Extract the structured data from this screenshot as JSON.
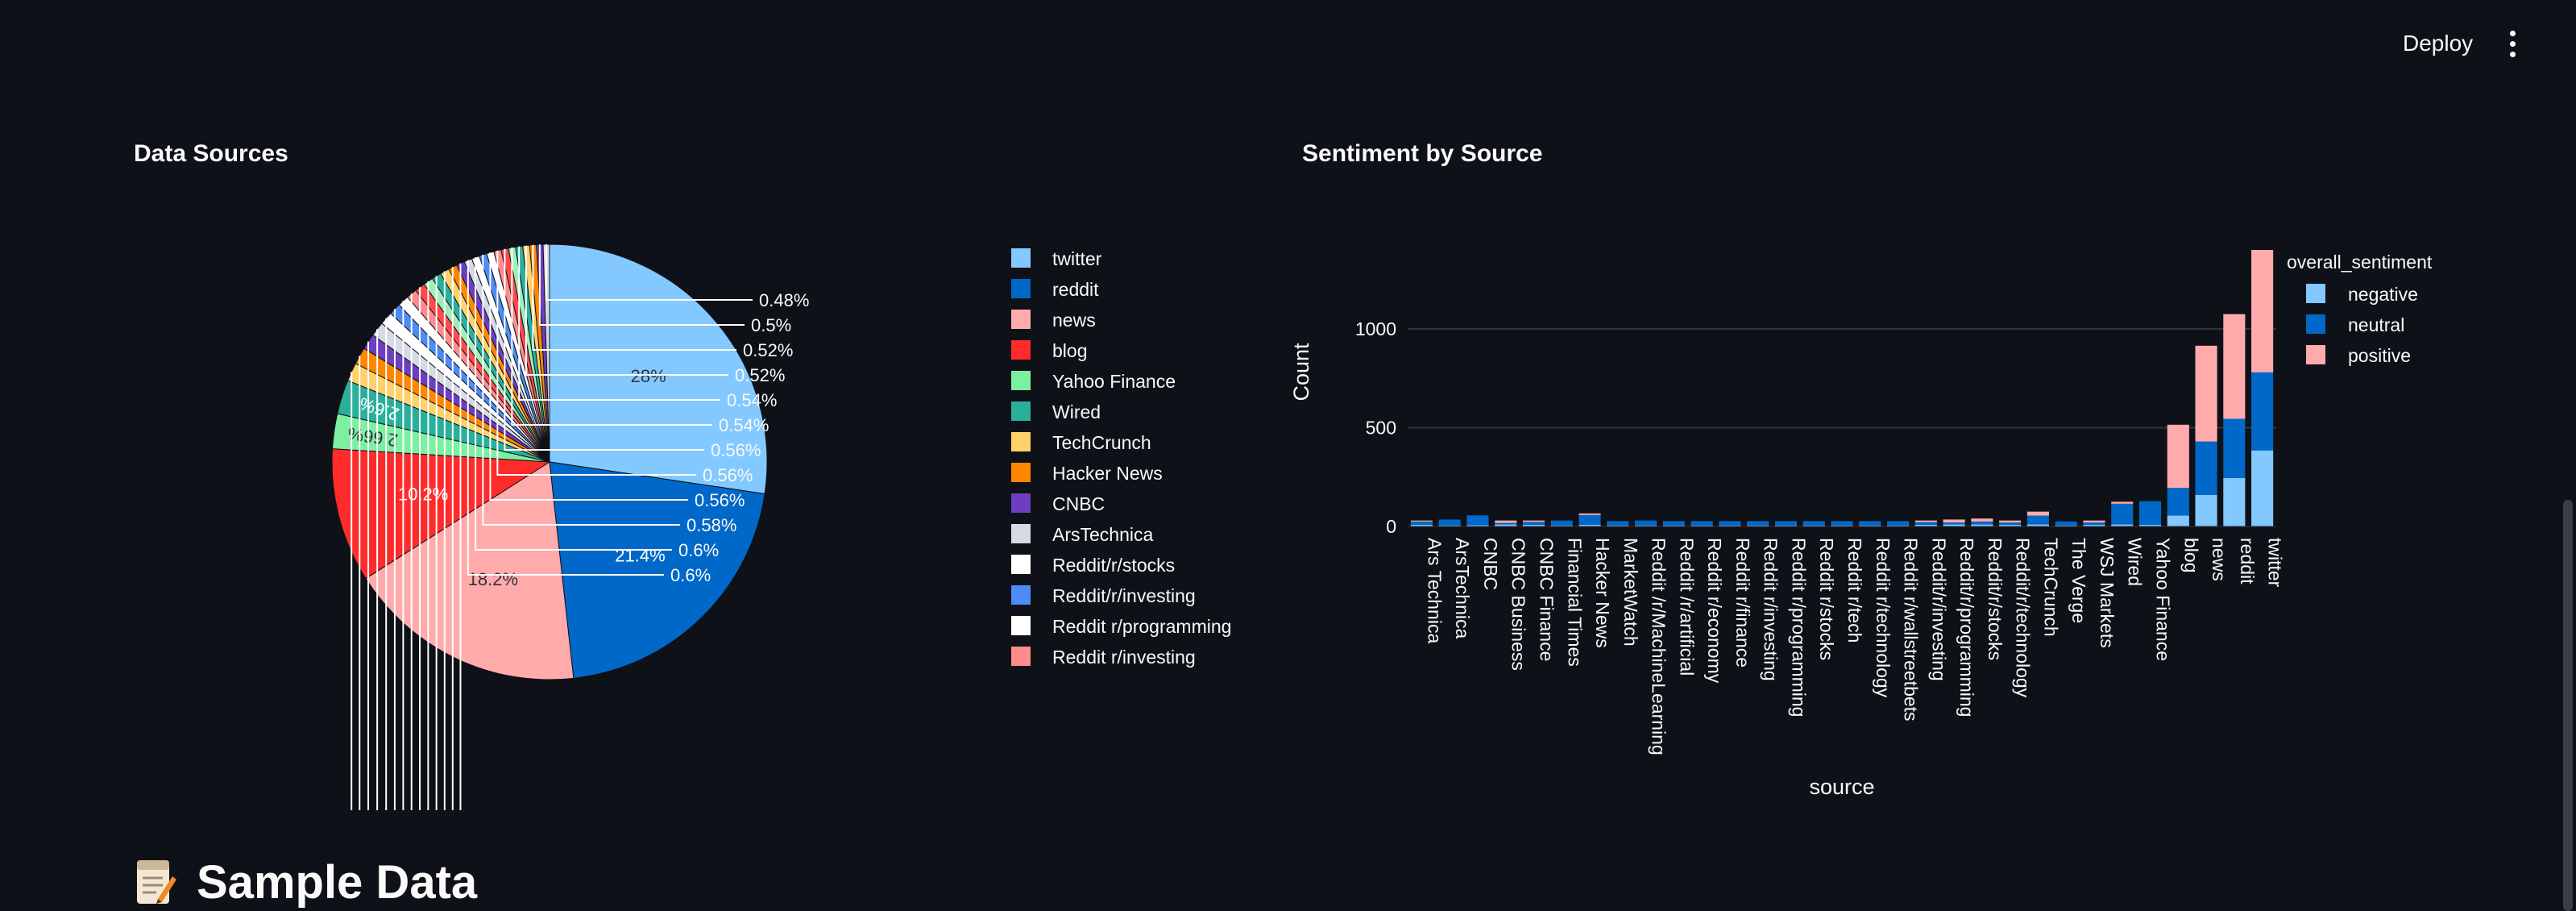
{
  "header": {
    "deploy_label": "Deploy"
  },
  "sections": {
    "pie_title": "Data Sources",
    "bar_title": "Sentiment by Source",
    "sample_title": "Sample Data"
  },
  "icons": {
    "menu": "more-vertical-icon",
    "sample": "memo-icon"
  },
  "colors": {
    "background": "#0e1117",
    "text": "#fafafa",
    "grid": "#31333f"
  },
  "chart_data": [
    {
      "type": "pie",
      "legend_position": "right",
      "slices": [
        {
          "label": "twitter",
          "percent": 28,
          "color": "#83c9ff",
          "text": "28%"
        },
        {
          "label": "reddit",
          "percent": 21.4,
          "color": "#0068c9",
          "text": "21.4%"
        },
        {
          "label": "news",
          "percent": 18.2,
          "color": "#ffabab",
          "text": "18.2%"
        },
        {
          "label": "blog",
          "percent": 10.2,
          "color": "#ff2b2b",
          "text": "10.2%"
        },
        {
          "label": "Yahoo Finance",
          "percent": 2.66,
          "color": "#7defa1",
          "text": "2.66%"
        },
        {
          "label": "Wired",
          "percent": 2.6,
          "color": "#29b09d",
          "text": "2.6%"
        },
        {
          "label": "TechCrunch",
          "percent": 1.4,
          "color": "#ffd16a",
          "text": ""
        },
        {
          "label": "Hacker News",
          "percent": 1.3,
          "color": "#ff8700",
          "text": ""
        },
        {
          "label": "CNBC",
          "percent": 1.2,
          "color": "#6d3fc0",
          "text": ""
        },
        {
          "label": "ArsTechnica",
          "percent": 1.1,
          "color": "#d5dae5",
          "text": ""
        },
        {
          "label": "Reddit/r/stocks",
          "percent": 1.0,
          "color": "#ffffff",
          "text": ""
        },
        {
          "label": "Reddit/r/investing",
          "percent": 0.9,
          "color": "#4d8cf5",
          "text": ""
        },
        {
          "label": "Reddit r/programming",
          "percent": 0.85,
          "color": "#ffffff",
          "text": ""
        },
        {
          "label": "Reddit r/investing",
          "percent": 0.8,
          "color": "#ff8c8c",
          "text": ""
        },
        {
          "label": "",
          "percent": 0.78,
          "color": "#ff4b4b",
          "text": ""
        },
        {
          "label": "",
          "percent": 0.75,
          "color": "#9ef0b8",
          "text": ""
        },
        {
          "label": "",
          "percent": 0.72,
          "color": "#29b09d",
          "text": ""
        },
        {
          "label": "",
          "percent": 0.7,
          "color": "#ffd16a",
          "text": ""
        },
        {
          "label": "",
          "percent": 0.66,
          "color": "#ff8700",
          "text": ""
        },
        {
          "label": "",
          "percent": 0.63,
          "color": "#6d3fc0",
          "text": ""
        },
        {
          "label": "",
          "percent": 0.6,
          "color": "#d5dae5",
          "text": "0.6%"
        },
        {
          "label": "",
          "percent": 0.6,
          "color": "#ffffff",
          "text": "0.6%"
        },
        {
          "label": "",
          "percent": 0.58,
          "color": "#4d8cf5",
          "text": "0.58%"
        },
        {
          "label": "",
          "percent": 0.56,
          "color": "#ffffff",
          "text": "0.56%"
        },
        {
          "label": "",
          "percent": 0.56,
          "color": "#ff8c8c",
          "text": "0.56%"
        },
        {
          "label": "",
          "percent": 0.56,
          "color": "#ff4b4b",
          "text": "0.56%"
        },
        {
          "label": "",
          "percent": 0.54,
          "color": "#9ef0b8",
          "text": "0.54%"
        },
        {
          "label": "",
          "percent": 0.54,
          "color": "#29b09d",
          "text": "0.54%"
        },
        {
          "label": "",
          "percent": 0.52,
          "color": "#ffd16a",
          "text": "0.52%"
        },
        {
          "label": "",
          "percent": 0.52,
          "color": "#ff8700",
          "text": "0.52%"
        },
        {
          "label": "",
          "percent": 0.5,
          "color": "#6d3fc0",
          "text": "0.5%"
        },
        {
          "label": "",
          "percent": 0.48,
          "color": "#d5dae5",
          "text": "0.48%"
        }
      ]
    },
    {
      "type": "bar",
      "stacked": true,
      "xlabel": "source",
      "ylabel": "Count",
      "ylim": [
        0,
        1400
      ],
      "yticks": [
        0,
        500,
        1000
      ],
      "legend_title": "overall_sentiment",
      "legend_position": "top-right",
      "categories": [
        "Ars Technica",
        "ArsTechnica",
        "CNBC",
        "CNBC Business",
        "CNBC Finance",
        "Financial Times",
        "Hacker News",
        "MarketWatch",
        "Reddit /r/MachineLearning",
        "Reddit /r/artificial",
        "Reddit r/economy",
        "Reddit r/finance",
        "Reddit r/investing",
        "Reddit r/programming",
        "Reddit r/stocks",
        "Reddit r/tech",
        "Reddit r/technology",
        "Reddit r/wallstreetbets",
        "Reddit/r/investing",
        "Reddit/r/programming",
        "Reddit/r/stocks",
        "Reddit/r/technology",
        "TechCrunch",
        "The Verge",
        "WSJ Markets",
        "Wired",
        "Yahoo Finance",
        "blog",
        "news",
        "reddit",
        "twitter"
      ],
      "series": [
        {
          "name": "negative",
          "color": "#83c9ff",
          "values": [
            8,
            5,
            6,
            10,
            8,
            5,
            8,
            5,
            5,
            5,
            5,
            5,
            5,
            5,
            5,
            5,
            5,
            5,
            8,
            10,
            10,
            8,
            10,
            5,
            8,
            10,
            8,
            55,
            160,
            245,
            385
          ]
        },
        {
          "name": "neutral",
          "color": "#0068c9",
          "values": [
            17,
            30,
            50,
            8,
            15,
            25,
            50,
            22,
            25,
            22,
            22,
            22,
            22,
            22,
            22,
            22,
            22,
            22,
            14,
            10,
            15,
            12,
            45,
            20,
            12,
            105,
            120,
            140,
            270,
            300,
            395
          ]
        },
        {
          "name": "positive",
          "color": "#ffabab",
          "values": [
            5,
            0,
            0,
            12,
            7,
            0,
            8,
            0,
            0,
            0,
            0,
            0,
            0,
            0,
            0,
            0,
            0,
            0,
            8,
            15,
            15,
            10,
            20,
            0,
            10,
            10,
            0,
            320,
            485,
            530,
            620
          ]
        }
      ]
    }
  ]
}
